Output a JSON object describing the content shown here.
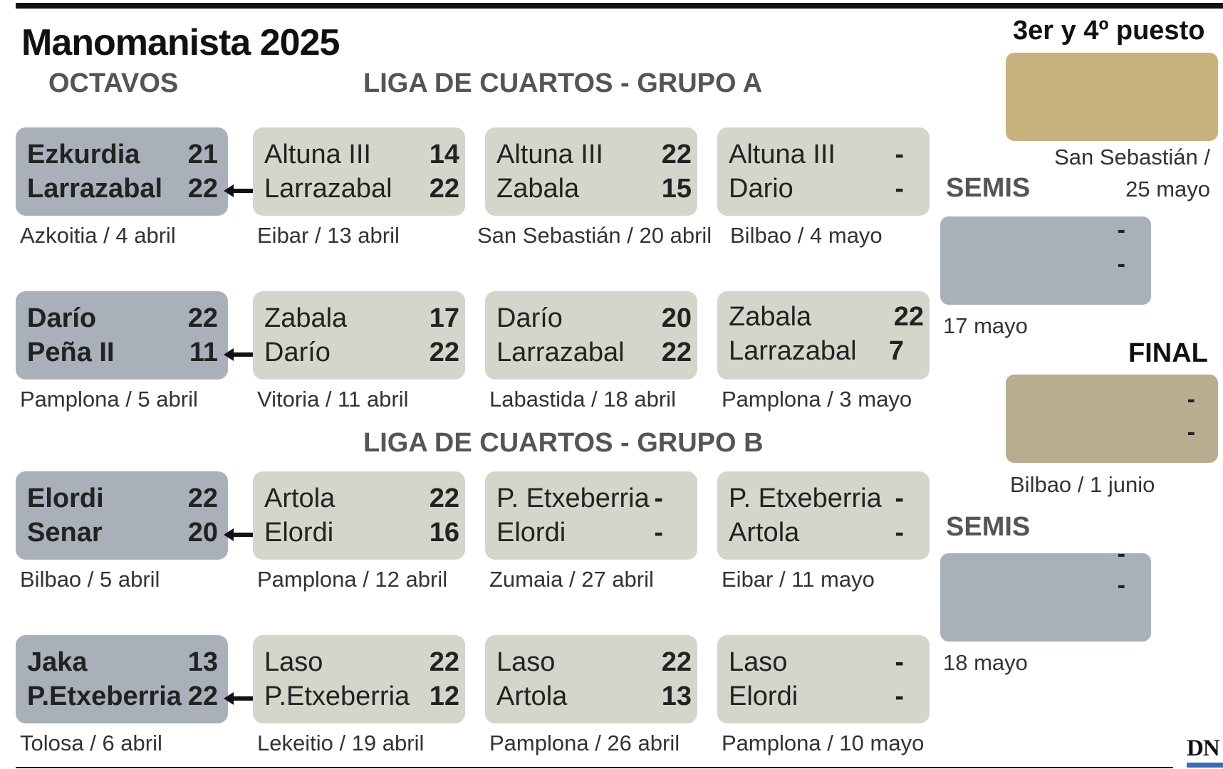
{
  "title": "Manomanista 2025",
  "sections": {
    "octavos": "OCTAVOS",
    "grupo_a": "LIGA DE CUARTOS - GRUPO A",
    "grupo_b": "LIGA DE CUARTOS - GRUPO B"
  },
  "octavos": [
    {
      "p1": "Ezkurdia",
      "s1": "21",
      "p2": "Larrazabal",
      "s2": "22",
      "venue": "Azkoitia / 4 abril"
    },
    {
      "p1": "Darío",
      "s1": "22",
      "p2": "Peña II",
      "s2": "11",
      "venue": "Pamplona / 5 abril"
    },
    {
      "p1": "Elordi",
      "s1": "22",
      "p2": "Senar",
      "s2": "20",
      "venue": "Bilbao / 5 abril"
    },
    {
      "p1": "Jaka",
      "s1": "13",
      "p2": "P.Etxeberria",
      "s2": "22",
      "venue": "Tolosa / 6 abril"
    }
  ],
  "grupo_a": [
    [
      {
        "p1": "Altuna III",
        "s1": "14",
        "p2": "Larrazabal",
        "s2": "22",
        "venue": "Eibar / 13 abril"
      },
      {
        "p1": "Altuna III",
        "s1": "22",
        "p2": "Zabala",
        "s2": "15",
        "venue": "San Sebastián / 20 abril"
      },
      {
        "p1": "Altuna III",
        "s1": "-",
        "p2": "Dario",
        "s2": "-",
        "venue": "Bilbao / 4 mayo"
      }
    ],
    [
      {
        "p1": "Zabala",
        "s1": "17",
        "p2": "Darío",
        "s2": "22",
        "venue": "Vitoria / 11 abril"
      },
      {
        "p1": "Darío",
        "s1": "20",
        "p2": "Larrazabal",
        "s2": "22",
        "venue": "Labastida / 18 abril"
      },
      {
        "p1": "Zabala",
        "s1": "22",
        "p2": "Larrazabal",
        "s2": "7",
        "venue": "Pamplona / 3 mayo"
      }
    ]
  ],
  "grupo_b": [
    [
      {
        "p1": "Artola",
        "s1": "22",
        "p2": "Elordi",
        "s2": "16",
        "venue": "Pamplona / 12 abril"
      },
      {
        "p1": "P. Etxeberria",
        "s1": "-",
        "p2": "Elordi",
        "s2": "-",
        "venue": "Zumaia / 27 abril"
      },
      {
        "p1": "P. Etxeberria",
        "s1": "-",
        "p2": "Artola",
        "s2": "-",
        "venue": "Eibar / 11 mayo"
      }
    ],
    [
      {
        "p1": "Laso",
        "s1": "22",
        "p2": "P.Etxeberria",
        "s2": "12",
        "venue": "Lekeitio / 19 abril"
      },
      {
        "p1": "Laso",
        "s1": "22",
        "p2": "Artola",
        "s2": "13",
        "venue": "Pamplona / 26 abril"
      },
      {
        "p1": "Laso",
        "s1": "-",
        "p2": "Elordi",
        "s2": "-",
        "venue": "Pamplona / 10 mayo"
      }
    ]
  ],
  "right": {
    "third_title": "3er y 4º puesto",
    "third_venue_line1": "San Sebastián /",
    "third_venue_line2": "25 mayo",
    "semis_a_title": "SEMIS",
    "semis_a_s1": "-",
    "semis_a_s2": "-",
    "semis_a_date": "17 mayo",
    "final_title": "FINAL",
    "final_s1": "-",
    "final_s2": "-",
    "final_venue": "Bilbao / 1 junio",
    "semis_b_title": "SEMIS",
    "semis_b_s1": "-",
    "semis_b_s2": "-",
    "semis_b_date": "18 mayo"
  },
  "logo": "DN",
  "colors": {
    "octavos_card": "#a9b0b9",
    "cuartos_card": "#d6d5cb",
    "third_box": "#c7b27e",
    "final_box": "#b8ad8f",
    "semis_box": "#a9b0b9",
    "logo_bar": "#3a6cb5"
  }
}
